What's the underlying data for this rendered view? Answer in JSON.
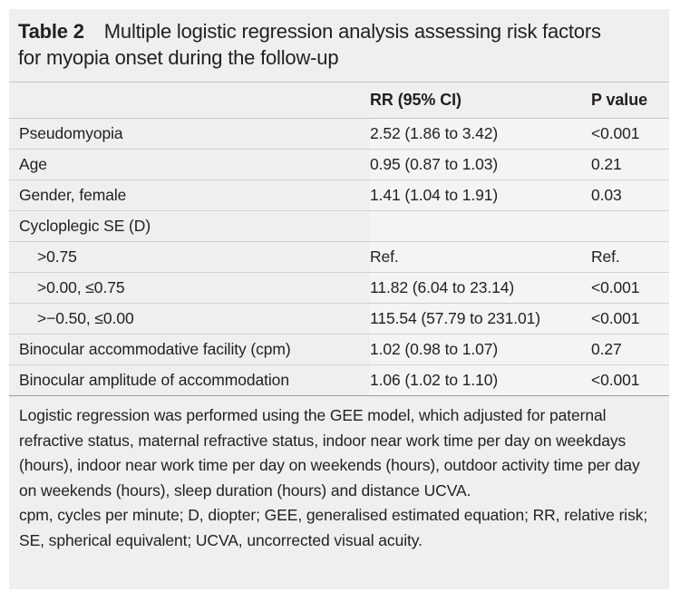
{
  "caption": {
    "label": "Table 2",
    "title_line1": "Multiple logistic regression analysis assessing risk factors",
    "title_line2": "for myopia onset during the follow-up"
  },
  "columns": [
    "",
    "RR (95% CI)",
    "P value"
  ],
  "rows": [
    {
      "label": "Pseudomyopia",
      "rr": "2.52 (1.86 to 3.42)",
      "p": "<0.001"
    },
    {
      "label": "Age",
      "rr": "0.95 (0.87 to 1.03)",
      "p": "0.21"
    },
    {
      "label": "Gender, female",
      "rr": "1.41 (1.04 to 1.91)",
      "p": "0.03"
    },
    {
      "label": "Cycloplegic SE (D)",
      "rr": "",
      "p": ""
    },
    {
      "label": ">0.75",
      "rr": "Ref.",
      "p": "Ref."
    },
    {
      "label": ">0.00, ≤0.75",
      "rr": "11.82 (6.04 to 23.14)",
      "p": "<0.001"
    },
    {
      "label": ">−0.50, ≤0.00",
      "rr": "115.54 (57.79 to 231.01)",
      "p": "<0.001"
    },
    {
      "label": "Binocular accommodative facility (cpm)",
      "rr": "1.02 (0.98 to 1.07)",
      "p": "0.27"
    },
    {
      "label": "Binocular amplitude of accommodation",
      "rr": "1.06 (1.02 to 1.10)",
      "p": "<0.001"
    }
  ],
  "footnotes": [
    "Logistic regression was performed using the GEE model, which adjusted for paternal refractive status, maternal refractive status, indoor near work time per day on weekdays (hours), indoor near work time per day on weekends (hours), outdoor activity time per day on weekends (hours), sleep duration (hours) and distance UCVA.",
    "cpm, cycles per minute; D, diopter; GEE, generalised estimated equation; RR, relative risk; SE, spherical equivalent; UCVA, uncorrected visual acuity."
  ]
}
